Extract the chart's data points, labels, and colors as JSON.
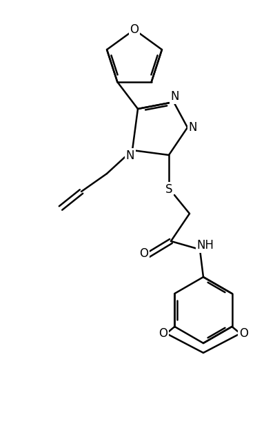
{
  "bg_color": "#ffffff",
  "line_color": "#000000",
  "fig_width": 3.7,
  "fig_height": 6.4,
  "dpi": 100,
  "lw": 1.8,
  "font_size": 11,
  "xlim": [
    0,
    370
  ],
  "ylim": [
    0,
    640
  ]
}
